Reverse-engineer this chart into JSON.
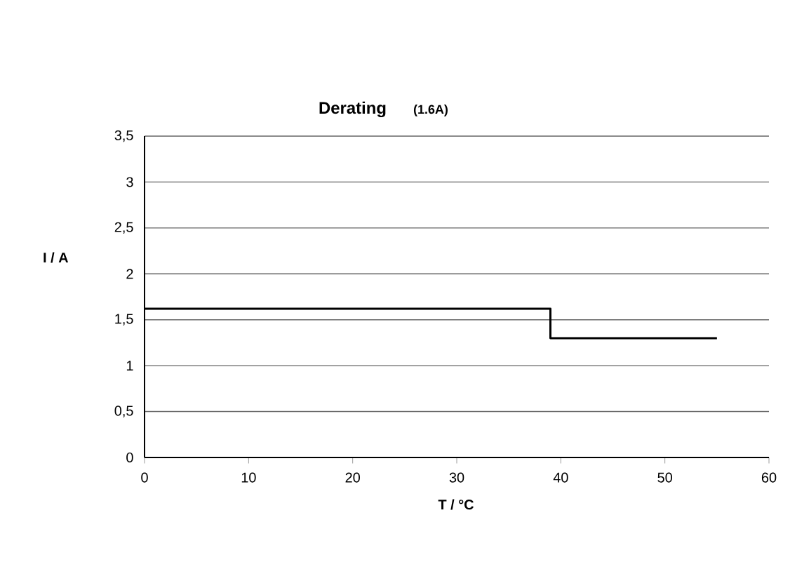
{
  "chart_data": {
    "type": "line",
    "title": "Derating",
    "subtitle": "(1.6A)",
    "xlabel": "T / °C",
    "ylabel": "I / A",
    "x": [
      0,
      39,
      39,
      55
    ],
    "series": [
      {
        "color": "#000000",
        "values": [
          1.62,
          1.62,
          1.3,
          1.3
        ]
      }
    ],
    "xlim": [
      0,
      60
    ],
    "xticks": [
      0,
      10,
      20,
      30,
      40,
      50,
      60
    ],
    "ylim": [
      0,
      3.5
    ],
    "yticks": [
      0,
      {
        "value": 0.5,
        "label": "0,5"
      },
      1,
      {
        "value": 1.5,
        "label": "1,5"
      },
      2,
      {
        "value": 2.5,
        "label": "2,5"
      },
      3,
      {
        "value": 3.5,
        "label": "3,5"
      }
    ],
    "grid": "y",
    "marker": "none",
    "line_style": "solid"
  }
}
